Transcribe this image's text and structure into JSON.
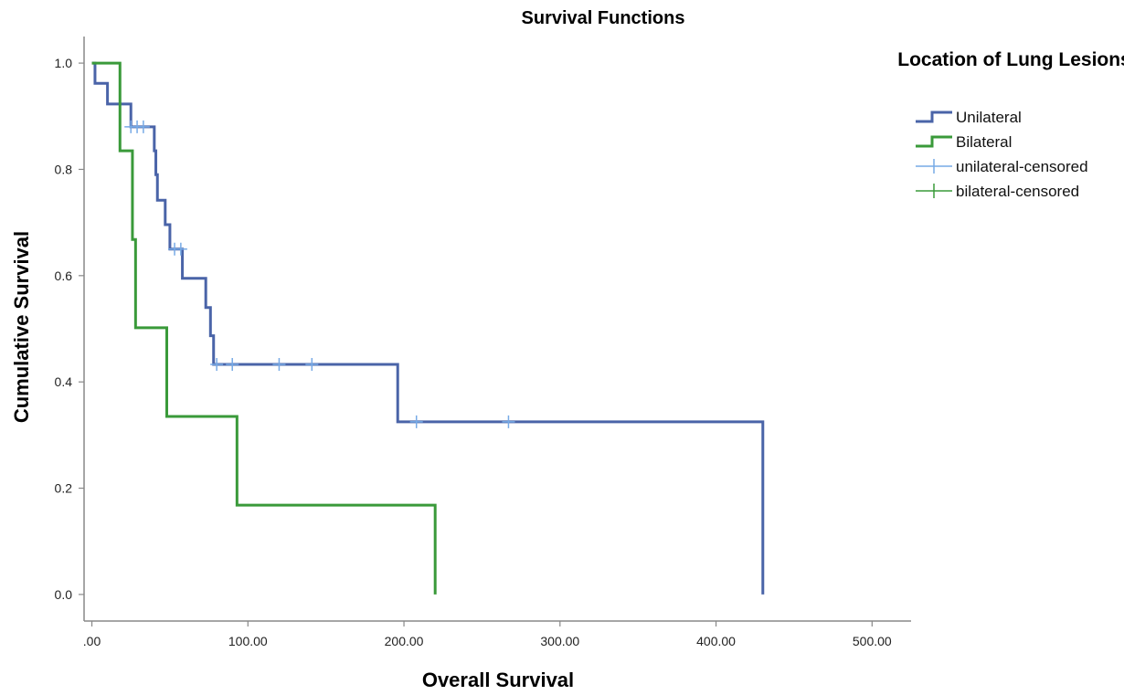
{
  "chart_data": {
    "type": "line",
    "title": "Survival Functions",
    "xlabel": "Overall Survival",
    "ylabel": "Cumulative Survival",
    "xlim": [
      -5,
      525
    ],
    "ylim": [
      -0.05,
      1.05
    ],
    "xticks": [
      0,
      100,
      200,
      300,
      400,
      500
    ],
    "xtick_labels": [
      ".00",
      "100.00",
      "200.00",
      "300.00",
      "400.00",
      "500.00"
    ],
    "yticks": [
      0,
      0.2,
      0.4,
      0.6,
      0.8,
      1.0
    ],
    "ytick_labels": [
      "0.0",
      "0.2",
      "0.4",
      "0.6",
      "0.8",
      "1.0"
    ],
    "grid": false,
    "legend": {
      "title": "Location of Lung Lesions",
      "placement": "top-right",
      "entries": [
        "Unilateral",
        "Bilateral",
        "unilateral-censored",
        "bilateral-censored"
      ]
    },
    "series": [
      {
        "name": "Unilateral",
        "color": "#4a64a8",
        "steps": [
          [
            0,
            1.0
          ],
          [
            2,
            0.962
          ],
          [
            10,
            0.923
          ],
          [
            25,
            0.88
          ],
          [
            40,
            0.835
          ],
          [
            41,
            0.79
          ],
          [
            42,
            0.742
          ],
          [
            47,
            0.696
          ],
          [
            50,
            0.65
          ],
          [
            58,
            0.595
          ],
          [
            73,
            0.54
          ],
          [
            76,
            0.487
          ],
          [
            78,
            0.433
          ],
          [
            196,
            0.325
          ],
          [
            430,
            0.0
          ]
        ]
      },
      {
        "name": "Bilateral",
        "color": "#3a9a3a",
        "steps": [
          [
            0,
            1.0
          ],
          [
            18,
            0.835
          ],
          [
            26,
            0.668
          ],
          [
            28,
            0.502
          ],
          [
            48,
            0.335
          ],
          [
            93,
            0.168
          ],
          [
            220,
            0.0
          ]
        ]
      }
    ],
    "censored": [
      {
        "name": "unilateral-censored",
        "color": "#77aae6",
        "points": [
          [
            25,
            0.88
          ],
          [
            29,
            0.88
          ],
          [
            33,
            0.88
          ],
          [
            53,
            0.65
          ],
          [
            57,
            0.65
          ],
          [
            80,
            0.433
          ],
          [
            90,
            0.433
          ],
          [
            120,
            0.433
          ],
          [
            141,
            0.433
          ],
          [
            208,
            0.325
          ],
          [
            267,
            0.325
          ]
        ]
      },
      {
        "name": "bilateral-censored",
        "color": "#3a9a3a",
        "points": []
      }
    ]
  }
}
